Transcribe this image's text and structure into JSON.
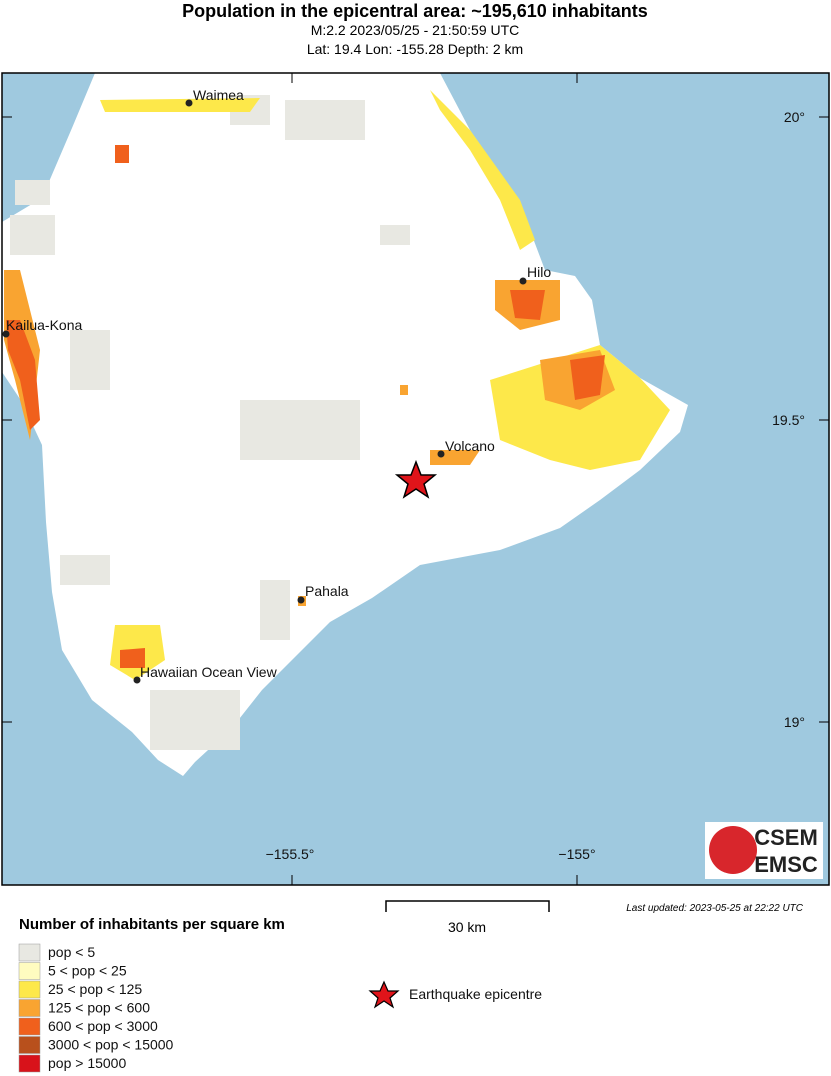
{
  "header": {
    "title": "Population in the epicentral area: ~195,610 inhabitants",
    "line1": "M:2.2 2023/05/25 - 21:50:59 UTC",
    "line2": "Lat: 19.4 Lon: -155.28 Depth: 2 km"
  },
  "map": {
    "cities": [
      "Waimea",
      "Hilo",
      "Kailua-Kona",
      "Volcano",
      "Pahala",
      "Hawaiian Ocean View"
    ],
    "lat_labels": [
      "20°",
      "19.5°",
      "19°"
    ],
    "lon_labels": [
      "−155.5°",
      "−155°"
    ],
    "logo": [
      "CSEM",
      "EMSC"
    ]
  },
  "last_updated": "Last updated: 2023-05-25 at 22:22 UTC",
  "scale_bar": "30 km",
  "legend": {
    "title": "Number of inhabitants per square km",
    "items": [
      {
        "label": "pop < 5",
        "color": "#e8e8e2"
      },
      {
        "label": "5 < pop < 25",
        "color": "#fffcc0"
      },
      {
        "label": "25 < pop < 125",
        "color": "#fde84a"
      },
      {
        "label": "125 < pop < 600",
        "color": "#f9a431"
      },
      {
        "label": "600 < pop < 3000",
        "color": "#f0601c"
      },
      {
        "label": "3000 < pop < 15000",
        "color": "#b8501c"
      },
      {
        "label": "pop > 15000",
        "color": "#d8121a"
      }
    ],
    "epicentre": "Earthquake epicentre"
  }
}
